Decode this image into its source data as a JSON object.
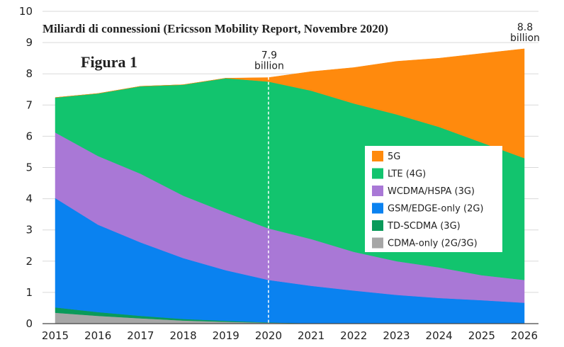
{
  "chart_data": {
    "type": "area",
    "stacked": true,
    "title": "Miliardi di connessioni (Ericsson Mobility Report, Novembre 2020)",
    "figure_label": "Figura 1",
    "x": [
      "2015",
      "2016",
      "2017",
      "2018",
      "2019",
      "2020",
      "2021",
      "2022",
      "2023",
      "2024",
      "2025",
      "2026"
    ],
    "ylim": [
      0,
      10
    ],
    "yticks": [
      "0",
      "1",
      "2",
      "3",
      "4",
      "5",
      "6",
      "7",
      "8",
      "9",
      "10"
    ],
    "grid": true,
    "legend_position": "center-right",
    "series": [
      {
        "name": "CDMA-only (2G/3G)",
        "color": "#a6a6a6",
        "values": [
          0.35,
          0.25,
          0.17,
          0.1,
          0.06,
          0.03,
          0.01,
          0,
          0,
          0,
          0,
          0
        ]
      },
      {
        "name": "TD-SCDMA (3G)",
        "color": "#0a9a5a",
        "values": [
          0.17,
          0.12,
          0.08,
          0.05,
          0.03,
          0.01,
          0,
          0,
          0,
          0,
          0,
          0
        ]
      },
      {
        "name": "GSM/EDGE-only (2G)",
        "color": "#0a82f0",
        "values": [
          3.5,
          2.8,
          2.35,
          1.95,
          1.62,
          1.36,
          1.2,
          1.06,
          0.92,
          0.82,
          0.75,
          0.67
        ]
      },
      {
        "name": "WCDMA/HSPA (3G)",
        "color": "#a978d6",
        "values": [
          2.1,
          2.2,
          2.2,
          2.0,
          1.85,
          1.65,
          1.5,
          1.24,
          1.08,
          0.98,
          0.8,
          0.73
        ]
      },
      {
        "name": "LTE (4G)",
        "color": "#12c46e",
        "values": [
          1.12,
          2.0,
          2.8,
          3.55,
          4.3,
          4.7,
          4.75,
          4.75,
          4.7,
          4.5,
          4.25,
          3.9
        ]
      },
      {
        "name": "5G",
        "color": "#ff8a0d",
        "values": [
          0,
          0,
          0,
          0,
          0,
          0.13,
          0.61,
          1.15,
          1.7,
          2.2,
          2.85,
          3.5
        ]
      }
    ],
    "annotations": [
      {
        "x": "2020",
        "value": 7.9,
        "line1": "7.9",
        "line2": "billion",
        "dashed_line": true
      },
      {
        "x": "2026",
        "value": 8.8,
        "line1": "8.8",
        "line2": "billion",
        "dashed_line": false
      }
    ],
    "legend_order": [
      "5G",
      "LTE (4G)",
      "WCDMA/HSPA (3G)",
      "GSM/EDGE-only (2G)",
      "TD-SCDMA (3G)",
      "CDMA-only (2G/3G)"
    ]
  }
}
